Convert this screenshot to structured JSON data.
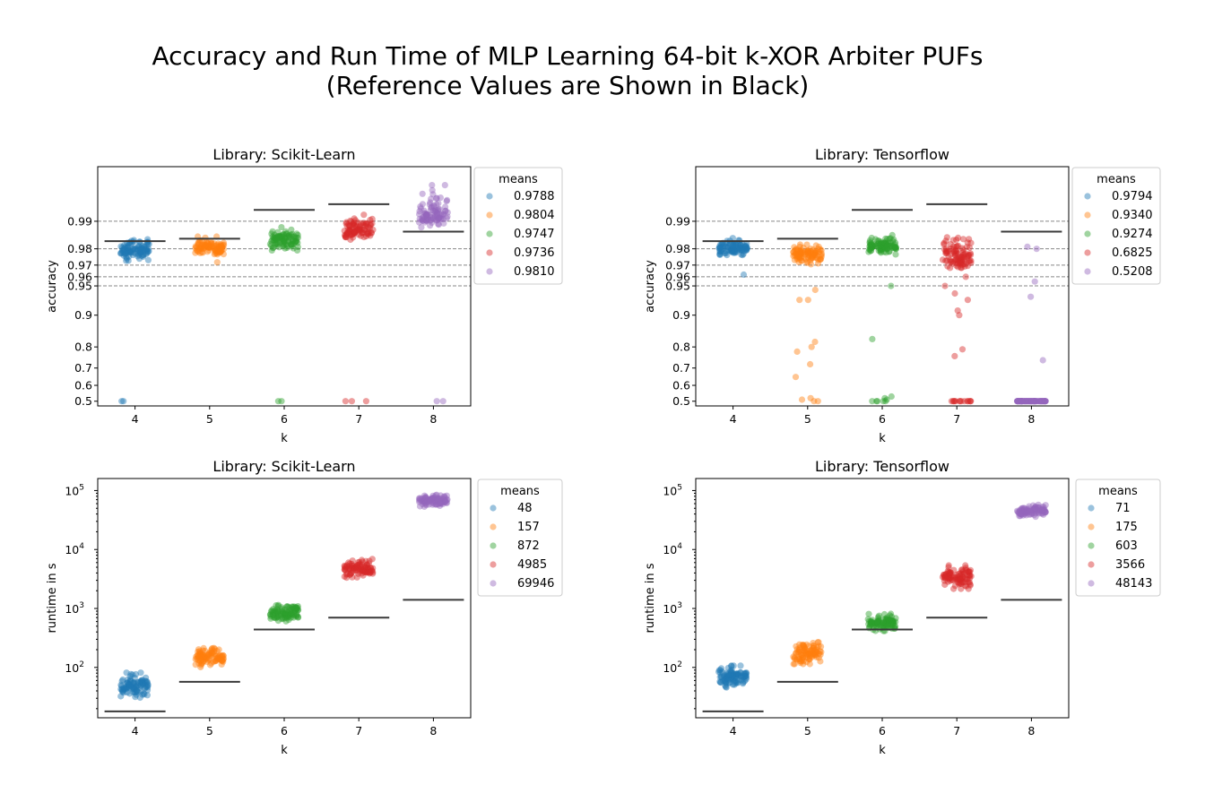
{
  "figure": {
    "title_line1": "Accuracy and Run Time of MLP Learning 64-bit k-XOR Arbiter PUFs",
    "title_line2": "(Reference Values are Shown in Black)"
  },
  "palette": [
    "#1f77b4",
    "#ff7f0e",
    "#2ca02c",
    "#d62728",
    "#9467bd"
  ],
  "chart_data": [
    {
      "type": "scatter",
      "subplot": "accuracy-scikit",
      "title": "Library: Scikit-Learn",
      "xlabel": "k",
      "ylabel": "accuracy",
      "categories": [
        "4",
        "5",
        "6",
        "7",
        "8"
      ],
      "yscale": "logit",
      "ylim": [
        0.47,
        0.9975
      ],
      "yticks": [
        0.5,
        0.6,
        0.7,
        0.8,
        0.9,
        0.95,
        0.96,
        0.97,
        0.98,
        0.99
      ],
      "ytick_labels": [
        "0.5",
        "0.6",
        "0.7",
        "0.8",
        "0.9",
        "0.95",
        "0.96",
        "0.97",
        "0.98",
        "0.99"
      ],
      "hlines": [
        0.95,
        0.96,
        0.97,
        0.98,
        0.99
      ],
      "reference_values": [
        0.9835,
        0.9845,
        0.9925,
        0.9935,
        0.987
      ],
      "legend_title": "means",
      "legend_placement": "outside-upper-right",
      "series": [
        {
          "name": "0.9788",
          "center": 0.9795,
          "spread": 0.004,
          "outliers": [
            0.5,
            0.5
          ]
        },
        {
          "name": "0.9804",
          "center": 0.9805,
          "spread": 0.003,
          "outliers": [
            0.972
          ]
        },
        {
          "name": "0.9747",
          "center": 0.984,
          "spread": 0.003,
          "outliers": [
            0.5,
            0.5
          ]
        },
        {
          "name": "0.9736",
          "center": 0.9875,
          "spread": 0.0025,
          "outliers": [
            0.5,
            0.5,
            0.5
          ]
        },
        {
          "name": "0.9810",
          "center": 0.992,
          "spread": 0.0025,
          "outliers": [
            0.5,
            0.5
          ]
        }
      ]
    },
    {
      "type": "scatter",
      "subplot": "accuracy-tensorflow",
      "title": "Library: Tensorflow",
      "xlabel": "k",
      "ylabel": "accuracy",
      "categories": [
        "4",
        "5",
        "6",
        "7",
        "8"
      ],
      "yscale": "logit",
      "ylim": [
        0.47,
        0.9975
      ],
      "yticks": [
        0.5,
        0.6,
        0.7,
        0.8,
        0.9,
        0.95,
        0.96,
        0.97,
        0.98,
        0.99
      ],
      "ytick_labels": [
        "0.5",
        "0.6",
        "0.7",
        "0.8",
        "0.9",
        "0.95",
        "0.96",
        "0.97",
        "0.98",
        "0.99"
      ],
      "hlines": [
        0.95,
        0.96,
        0.97,
        0.98,
        0.99
      ],
      "reference_values": [
        0.9835,
        0.9845,
        0.9925,
        0.9935,
        0.987
      ],
      "legend_title": "means",
      "legend_placement": "outside-upper-right",
      "series": [
        {
          "name": "0.9794",
          "center": 0.9805,
          "spread": 0.003,
          "outliers": [
            0.962
          ]
        },
        {
          "name": "0.9340",
          "center": 0.977,
          "spread": 0.004,
          "outliers": [
            0.945,
            0.93,
            0.93,
            0.82,
            0.8,
            0.78,
            0.72,
            0.65,
            0.52,
            0.51,
            0.5,
            0.5
          ]
        },
        {
          "name": "0.9274",
          "center": 0.981,
          "spread": 0.003,
          "outliers": [
            0.95,
            0.83,
            0.53,
            0.52,
            0.51,
            0.5,
            0.5,
            0.5,
            0.5,
            0.5
          ]
        },
        {
          "name": "0.6825",
          "center": 0.975,
          "spread": 0.008,
          "outliers": [
            0.97,
            0.96,
            0.95,
            0.94,
            0.93,
            0.91,
            0.9,
            0.79,
            0.76,
            0.5,
            0.5,
            0.5,
            0.5,
            0.5,
            0.5,
            0.5,
            0.5,
            0.5,
            0.5,
            0.5,
            0.5,
            0.5,
            0.5
          ]
        },
        {
          "name": "0.5208",
          "center": 0.5,
          "spread": 0.0,
          "outliers": [
            0.98,
            0.981,
            0.955,
            0.935,
            0.74
          ]
        }
      ]
    },
    {
      "type": "scatter",
      "subplot": "runtime-scikit",
      "title": "Library: Scikit-Learn",
      "xlabel": "k",
      "ylabel": "runtime in s",
      "categories": [
        "4",
        "5",
        "6",
        "7",
        "8"
      ],
      "yscale": "log",
      "ylim": [
        14,
        160000
      ],
      "yticks": [
        100,
        1000,
        10000,
        100000
      ],
      "reference_values": [
        18,
        57,
        440,
        700,
        1400
      ],
      "legend_title": "means",
      "legend_placement": "outside-upper-right",
      "series": [
        {
          "name": "48",
          "center": 50,
          "spread": 0.16
        },
        {
          "name": "157",
          "center": 150,
          "spread": 0.13
        },
        {
          "name": "872",
          "center": 850,
          "spread": 0.12
        },
        {
          "name": "4985",
          "center": 4800,
          "spread": 0.12
        },
        {
          "name": "69946",
          "center": 68000,
          "spread": 0.08
        }
      ]
    },
    {
      "type": "scatter",
      "subplot": "runtime-tensorflow",
      "title": "Library: Tensorflow",
      "xlabel": "k",
      "ylabel": "runtime in s",
      "categories": [
        "4",
        "5",
        "6",
        "7",
        "8"
      ],
      "yscale": "log",
      "ylim": [
        14,
        160000
      ],
      "yticks": [
        100,
        1000,
        10000,
        100000
      ],
      "reference_values": [
        18,
        57,
        440,
        700,
        1400
      ],
      "legend_title": "means",
      "legend_placement": "outside-upper-right",
      "series": [
        {
          "name": "71",
          "center": 70,
          "spread": 0.14
        },
        {
          "name": "175",
          "center": 175,
          "spread": 0.14
        },
        {
          "name": "603",
          "center": 580,
          "spread": 0.11
        },
        {
          "name": "3566",
          "center": 3400,
          "spread": 0.15
        },
        {
          "name": "48143",
          "center": 46000,
          "spread": 0.08
        }
      ]
    }
  ]
}
